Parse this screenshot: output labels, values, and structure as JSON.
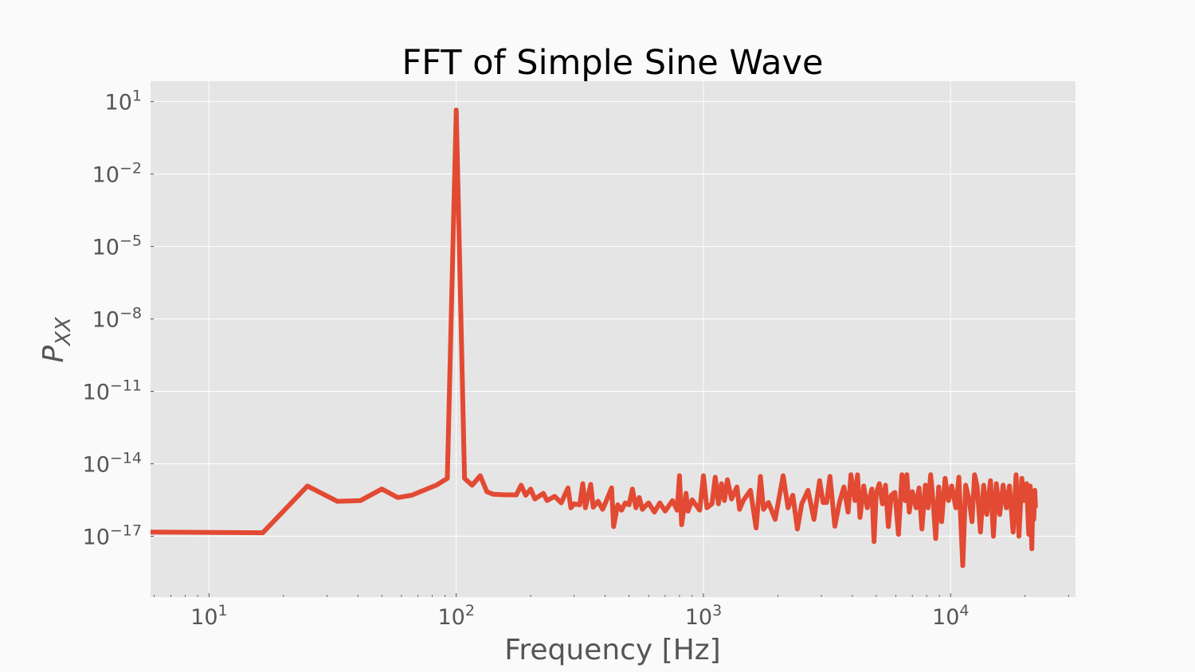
{
  "chart_data": {
    "type": "line",
    "title": "FFT of Simple Sine Wave",
    "xlabel": "Frequency [Hz]",
    "ylabel_base": "P",
    "ylabel_sub": "XX",
    "xscale": "log",
    "yscale": "log",
    "xlim": [
      5.8,
      32000
    ],
    "ylim": [
      3e-20,
      70
    ],
    "grid": true,
    "xticks": [
      {
        "value": 10,
        "base": "10",
        "exp": "1"
      },
      {
        "value": 100,
        "base": "10",
        "exp": "2"
      },
      {
        "value": 1000,
        "base": "10",
        "exp": "3"
      },
      {
        "value": 10000,
        "base": "10",
        "exp": "4"
      }
    ],
    "yticks": [
      {
        "value": 10,
        "base": "10",
        "exp": "1"
      },
      {
        "value": 0.01,
        "base": "10",
        "exp": "−2"
      },
      {
        "value": 1e-05,
        "base": "10",
        "exp": "−5"
      },
      {
        "value": 1e-08,
        "base": "10",
        "exp": "−8"
      },
      {
        "value": 1e-11,
        "base": "10",
        "exp": "−11"
      },
      {
        "value": 1e-14,
        "base": "10",
        "exp": "−14"
      },
      {
        "value": 1e-17,
        "base": "10",
        "exp": "−17"
      }
    ],
    "series": [
      {
        "color": "#e24a33",
        "points": [
          [
            5.8,
            1.5e-17
          ],
          [
            16.5,
            1.4e-17
          ],
          [
            25,
            1.2e-15
          ],
          [
            33,
            2.8e-16
          ],
          [
            41,
            3e-16
          ],
          [
            50,
            9e-16
          ],
          [
            58,
            4e-16
          ],
          [
            66,
            5e-16
          ],
          [
            83,
            1.3e-15
          ],
          [
            92,
            2.5e-15
          ],
          [
            100,
            4.5
          ],
          [
            108,
            2.5e-15
          ],
          [
            116,
            1.3e-15
          ],
          [
            125,
            3.2e-15
          ],
          [
            133,
            7e-16
          ],
          [
            141,
            5.5e-16
          ],
          [
            158,
            5.2e-16
          ],
          [
            175,
            5.2e-16
          ],
          [
            183,
            1.3e-15
          ],
          [
            191,
            5e-16
          ],
          [
            200,
            9e-16
          ],
          [
            208,
            3.5e-16
          ],
          [
            225,
            6e-16
          ],
          [
            233,
            3e-16
          ],
          [
            250,
            4.5e-16
          ],
          [
            266,
            2.4e-16
          ],
          [
            283,
            1e-15
          ],
          [
            291,
            1.5e-16
          ],
          [
            300,
            2.2e-16
          ],
          [
            316,
            2e-16
          ],
          [
            325,
            1.5e-15
          ],
          [
            333,
            1.5e-16
          ],
          [
            350,
            1.4e-15
          ],
          [
            358,
            1.6e-16
          ],
          [
            375,
            2.8e-16
          ],
          [
            391,
            1.3e-16
          ],
          [
            400,
            2.2e-16
          ],
          [
            425,
            1e-15
          ],
          [
            433,
            2.5e-17
          ],
          [
            450,
            2e-16
          ],
          [
            466,
            1.2e-16
          ],
          [
            483,
            2.4e-16
          ],
          [
            500,
            2e-16
          ],
          [
            516,
            9e-16
          ],
          [
            533,
            1.5e-16
          ],
          [
            550,
            4e-16
          ],
          [
            566,
            1.3e-16
          ],
          [
            600,
            2.4e-16
          ],
          [
            633,
            1e-16
          ],
          [
            666,
            2.4e-16
          ],
          [
            700,
            1.1e-16
          ],
          [
            750,
            3e-16
          ],
          [
            783,
            1.2e-16
          ],
          [
            800,
            3.2e-15
          ],
          [
            816,
            3e-17
          ],
          [
            850,
            6e-16
          ],
          [
            866,
            1.1e-16
          ],
          [
            900,
            3.2e-16
          ],
          [
            966,
            1.2e-16
          ],
          [
            1000,
            3.2e-15
          ],
          [
            1033,
            1.5e-16
          ],
          [
            1083,
            2.2e-16
          ],
          [
            1116,
            2.8e-15
          ],
          [
            1150,
            2.2e-16
          ],
          [
            1183,
            1.5e-15
          ],
          [
            1216,
            3e-16
          ],
          [
            1250,
            2.2e-15
          ],
          [
            1300,
            3.5e-16
          ],
          [
            1366,
            1.1e-15
          ],
          [
            1400,
            1.3e-16
          ],
          [
            1450,
            3e-16
          ],
          [
            1550,
            8e-16
          ],
          [
            1633,
            2.2e-17
          ],
          [
            1700,
            3e-15
          ],
          [
            1750,
            1.3e-16
          ],
          [
            1833,
            2.5e-16
          ],
          [
            1950,
            5e-17
          ],
          [
            2100,
            3.2e-15
          ],
          [
            2200,
            1.5e-16
          ],
          [
            2300,
            5e-16
          ],
          [
            2400,
            2e-17
          ],
          [
            2500,
            2.2e-16
          ],
          [
            2650,
            8e-16
          ],
          [
            2800,
            5e-17
          ],
          [
            2950,
            2e-15
          ],
          [
            3050,
            2.5e-16
          ],
          [
            3150,
            2.5e-16
          ],
          [
            3250,
            3e-15
          ],
          [
            3400,
            2.6e-17
          ],
          [
            3550,
            2.5e-16
          ],
          [
            3700,
            1.1e-15
          ],
          [
            3850,
            1e-16
          ],
          [
            3950,
            3.5e-15
          ],
          [
            4100,
            3e-16
          ],
          [
            4200,
            3.5e-15
          ],
          [
            4300,
            6e-17
          ],
          [
            4450,
            1.2e-15
          ],
          [
            4600,
            1.5e-16
          ],
          [
            4800,
            9e-16
          ],
          [
            4900,
            6e-18
          ],
          [
            5000,
            6e-16
          ],
          [
            5150,
            1.5e-15
          ],
          [
            5300,
            2.2e-16
          ],
          [
            5450,
            1.3e-15
          ],
          [
            5600,
            2.5e-17
          ],
          [
            5750,
            5e-16
          ],
          [
            5950,
            6.5e-16
          ],
          [
            6150,
            1.2e-17
          ],
          [
            6350,
            3.5e-15
          ],
          [
            6550,
            3e-16
          ],
          [
            6650,
            3.5e-15
          ],
          [
            6800,
            1e-16
          ],
          [
            7000,
            7e-16
          ],
          [
            7150,
            3e-16
          ],
          [
            7250,
            1.5e-16
          ],
          [
            7450,
            1e-15
          ],
          [
            7650,
            2e-17
          ],
          [
            7900,
            1.3e-15
          ],
          [
            8100,
            1.5e-16
          ],
          [
            8300,
            3.5e-15
          ],
          [
            8500,
            2.5e-16
          ],
          [
            8700,
            8e-18
          ],
          [
            8950,
            1.1e-15
          ],
          [
            9200,
            4e-17
          ],
          [
            9500,
            2.5e-15
          ],
          [
            9800,
            3e-16
          ],
          [
            10100,
            1.2e-15
          ],
          [
            10500,
            1.5e-16
          ],
          [
            10800,
            2.8e-15
          ],
          [
            11200,
            6e-19
          ],
          [
            11500,
            1.3e-15
          ],
          [
            11900,
            3e-16
          ],
          [
            12200,
            4e-17
          ],
          [
            12500,
            3.5e-15
          ],
          [
            12800,
            1.2e-15
          ],
          [
            13200,
            1.5e-17
          ],
          [
            13600,
            1.3e-15
          ],
          [
            14000,
            8e-17
          ],
          [
            14500,
            2e-15
          ],
          [
            14900,
            1e-17
          ],
          [
            15300,
            1.5e-15
          ],
          [
            15800,
            8e-17
          ],
          [
            16300,
            1.3e-15
          ],
          [
            16800,
            1.5e-16
          ],
          [
            17300,
            1.2e-15
          ],
          [
            17900,
            1.5e-17
          ],
          [
            18400,
            3.5e-15
          ],
          [
            18900,
            1e-17
          ],
          [
            19400,
            2.5e-15
          ],
          [
            19800,
            3e-16
          ],
          [
            20300,
            1.5e-15
          ],
          [
            20700,
            1.2e-17
          ],
          [
            21000,
            1.2e-15
          ],
          [
            21300,
            3e-18
          ],
          [
            21500,
            4e-16
          ],
          [
            21700,
            5e-17
          ],
          [
            21900,
            8e-16
          ],
          [
            22050,
            1.5e-16
          ]
        ]
      }
    ]
  }
}
